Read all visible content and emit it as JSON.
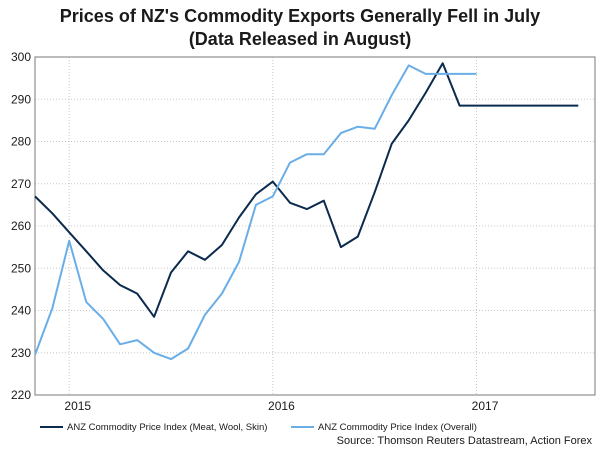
{
  "chart_data": {
    "type": "line",
    "title_lines": [
      "Prices of NZ's Commodity Exports Generally Fell in July",
      "(Data Released in August)"
    ],
    "ylim": [
      220,
      300
    ],
    "yticks": [
      "220",
      "230",
      "240",
      "250",
      "260",
      "270",
      "280",
      "290",
      "300"
    ],
    "xlim": [
      2014.79,
      2017.54
    ],
    "xticks": [
      {
        "label": "2015",
        "x": 2015.0
      },
      {
        "label": "2016",
        "x": 2016.0
      },
      {
        "label": "2017",
        "x": 2017.0
      }
    ],
    "x_gridlines": [
      2014.958,
      2015.958,
      2016.958
    ],
    "grid": true,
    "legend_position": "bottom",
    "series": [
      {
        "name": "ANZ Commodity Price Index (Meat, Wool, Skin)",
        "color": "#0b2a4d",
        "x": [
          2014.79,
          2014.875,
          2014.958,
          2015.042,
          2015.125,
          2015.208,
          2015.292,
          2015.375,
          2015.458,
          2015.542,
          2015.625,
          2015.708,
          2015.792,
          2015.875,
          2015.958,
          2016.042,
          2016.125,
          2016.208,
          2016.292,
          2016.375,
          2016.458,
          2016.542,
          2016.625,
          2016.708,
          2016.792,
          2016.875,
          2016.958,
          2017.042,
          2017.125,
          2017.208,
          2017.292,
          2017.375,
          2017.458
        ],
        "y": [
          267,
          263,
          258.5,
          254,
          249.5,
          246,
          244,
          238.5,
          249,
          254,
          252,
          255.5,
          262,
          267.5,
          270.5,
          265.5,
          264,
          266,
          255,
          257.5,
          268,
          279.5,
          285,
          291.5,
          298.5,
          288.5,
          288.5,
          288.5,
          288.5,
          288.5,
          288.5,
          288.5,
          288.5
        ]
      },
      {
        "name": "ANZ Commodity Price Index (Overall)",
        "color": "#6aaee8",
        "x": [
          2014.79,
          2014.875,
          2014.958,
          2015.042,
          2015.125,
          2015.208,
          2015.292,
          2015.375,
          2015.458,
          2015.542,
          2015.625,
          2015.708,
          2015.792,
          2015.875,
          2015.958,
          2016.042,
          2016.125,
          2016.208,
          2016.292,
          2016.375,
          2016.458,
          2016.542,
          2016.625,
          2016.708,
          2016.792,
          2016.875,
          2016.958
        ],
        "y": [
          229.5,
          240.5,
          256.5,
          242,
          238,
          232,
          233,
          230,
          228.5,
          231,
          239,
          244,
          251.5,
          265,
          267,
          275,
          277,
          277,
          282,
          283.5,
          283,
          291,
          298,
          296,
          296,
          296,
          296
        ]
      }
    ]
  },
  "source": "Source: Thomson Reuters Datastream, Action Forex"
}
